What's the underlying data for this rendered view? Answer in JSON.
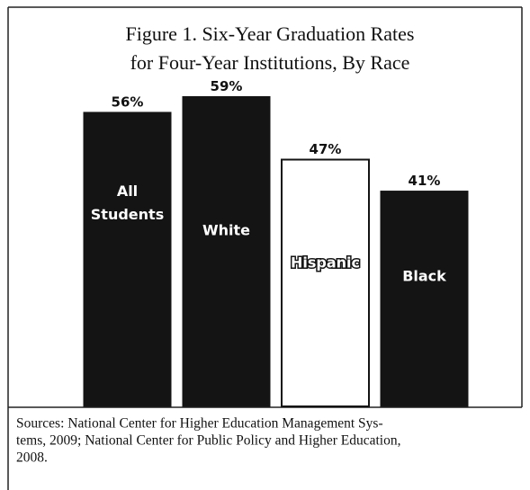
{
  "chart_data": {
    "type": "bar",
    "title": "Figure 1.  Six-Year Graduation Rates",
    "subtitle": "for Four-Year Institutions, By Race",
    "categories": [
      "All Students",
      "White",
      "Hispanic",
      "Black"
    ],
    "values": [
      56,
      59,
      47,
      41
    ],
    "value_labels": [
      "56%",
      "59%",
      "47%",
      "41%"
    ],
    "colors": [
      "#141414",
      "#141414",
      "#ffffff",
      "#141414"
    ],
    "source": [
      "Sources:  National Center for Higher Education Management Sys-",
      "tems, 2009; National Center for Public Policy and Higher Education,",
      "2008."
    ]
  }
}
